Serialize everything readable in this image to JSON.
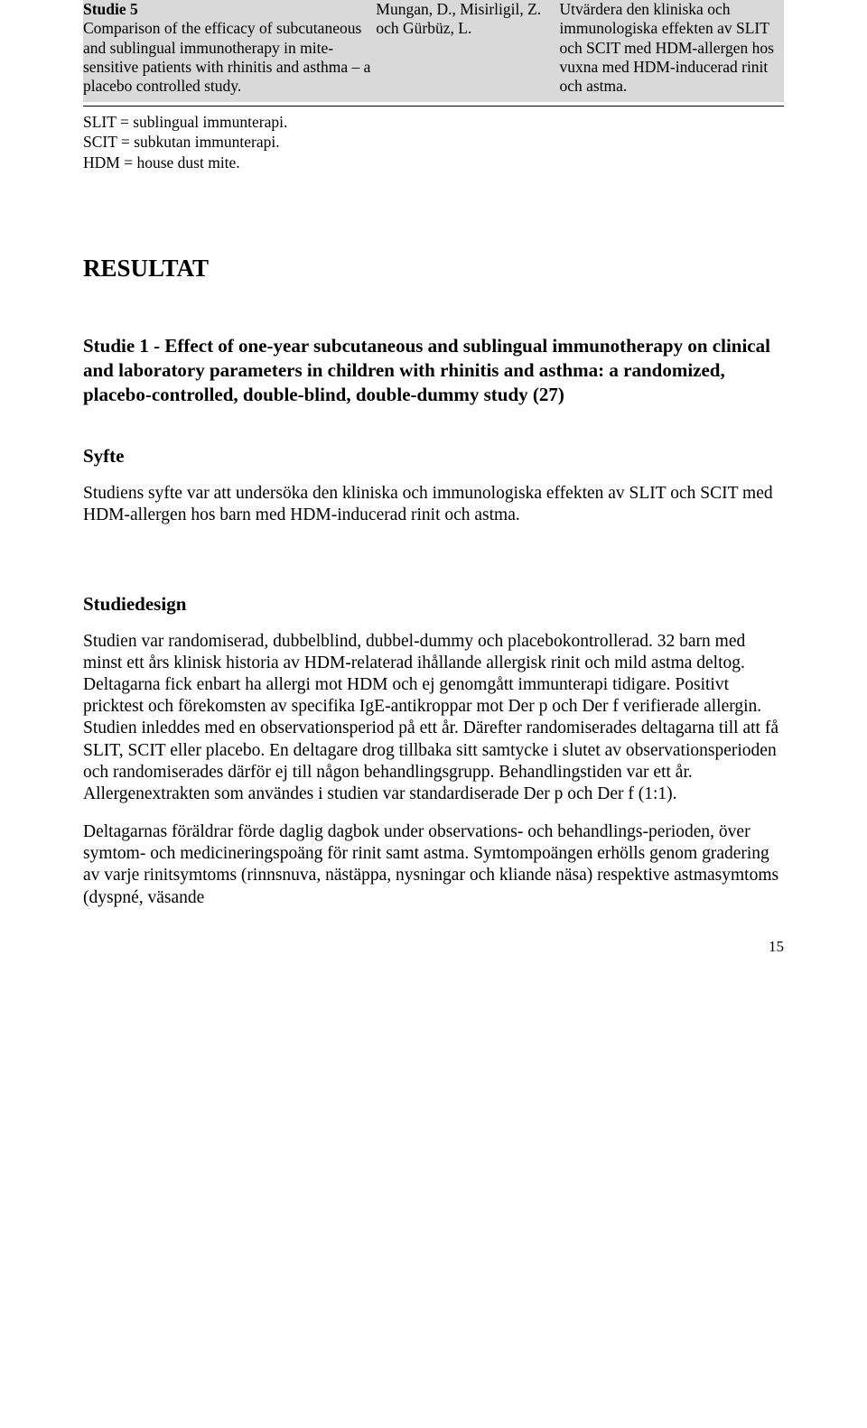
{
  "table": {
    "row": {
      "col1_title": "Studie 5",
      "col1_body": "Comparison of the efficacy of subcutaneous and sublingual immunotherapy in mite-sensitive patients with rhinitis and asthma – a placebo controlled study.",
      "col2": "Mungan, D., Misirligil, Z. och Gürbüz, L.",
      "col3": "Utvärdera den kliniska och immunologiska effekten av SLIT och SCIT med HDM-allergen hos vuxna med HDM-inducerad rinit och astma."
    },
    "legend": {
      "l1": "SLIT = sublingual immunterapi.",
      "l2": "SCIT = subkutan immunterapi.",
      "l3": "HDM = house dust mite."
    }
  },
  "headings": {
    "resultat": "RESULTAT",
    "study1": "Studie 1 - Effect of one-year subcutaneous and sublingual immunotherapy on clinical and laboratory parameters in children with rhinitis and asthma: a randomized, placebo-controlled, double-blind, double-dummy study (27)",
    "syfte": "Syfte",
    "studiedesign": "Studiedesign"
  },
  "paragraphs": {
    "syfte_body": "Studiens syfte var att undersöka den kliniska och immunologiska effekten av SLIT och SCIT med HDM-allergen hos barn med HDM-inducerad rinit och astma.",
    "design_p1": "Studien var randomiserad, dubbelblind, dubbel-dummy och placebokontrollerad. 32 barn med minst ett års klinisk historia av HDM-relaterad ihållande allergisk rinit och mild astma deltog. Deltagarna fick enbart ha allergi mot HDM och ej genomgått immunterapi tidigare. Positivt pricktest och förekomsten av specifika IgE-antikroppar mot Der p och Der f verifierade allergin. Studien inleddes med en observationsperiod på ett år. Därefter randomiserades deltagarna till att få SLIT, SCIT eller placebo. En deltagare drog tillbaka sitt samtycke i slutet av observationsperioden och randomiserades därför ej till någon behandlingsgrupp. Behandlingstiden var ett år. Allergenextrakten som användes i studien var standardiserade Der p och Der f (1:1).",
    "design_p2": "Deltagarnas föräldrar förde daglig dagbok under observations- och behandlings-perioden, över symtom- och medicineringspoäng för rinit samt astma. Symtompoängen erhölls genom gradering av varje rinitsymtoms (rinnsnuva, nästäppa, nysningar och kliande näsa) respektive astmasymtoms (dyspné, väsande"
  },
  "page_number": "15",
  "colors": {
    "highlight": "#d9d9d9",
    "text": "#000000",
    "background": "#ffffff"
  }
}
